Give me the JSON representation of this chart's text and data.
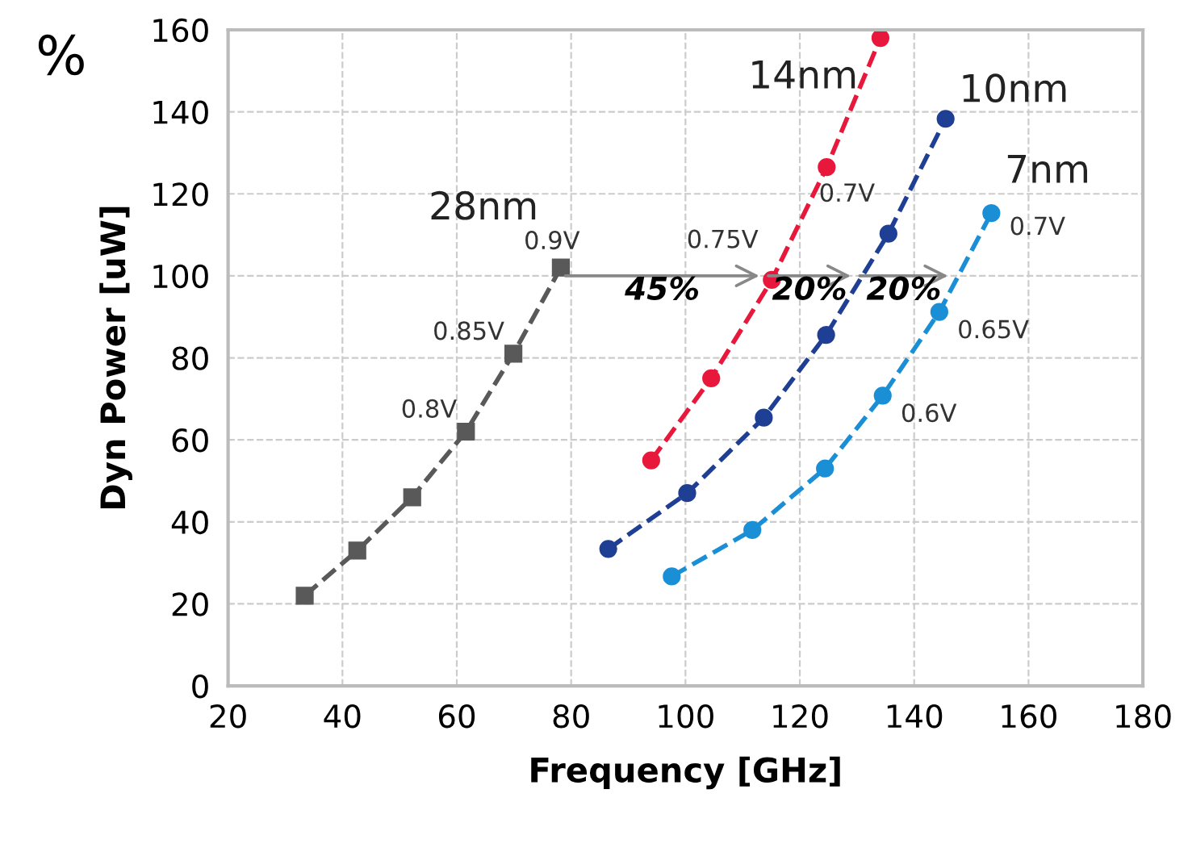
{
  "chart_data": {
    "type": "line",
    "xlabel": "Frequency [GHz]",
    "ylabel": "Dyn Power [uW]",
    "xlim": [
      20,
      180
    ],
    "xticks": [
      20,
      40,
      60,
      80,
      100,
      120,
      140,
      160,
      180
    ],
    "ylim": [
      0,
      160
    ],
    "yticks": [
      0,
      20,
      40,
      60,
      80,
      100,
      120,
      140,
      160
    ],
    "grid": true,
    "line_style": "dashed",
    "legend": false,
    "series": [
      {
        "name": "28nm",
        "color": "#595959",
        "marker": "square",
        "x": [
          33.4,
          42.6,
          52.2,
          61.6,
          69.9,
          78.2
        ],
        "values": [
          22,
          33,
          46,
          62,
          81,
          102
        ]
      },
      {
        "name": "14nm",
        "color": "#e8183c",
        "marker": "circle",
        "x": [
          94,
          104.5,
          115.1,
          124.7,
          134.1
        ],
        "values": [
          55,
          75,
          99,
          126.5,
          158
        ]
      },
      {
        "name": "10nm",
        "color": "#1f3f94",
        "marker": "circle",
        "x": [
          86.5,
          100.3,
          113.7,
          124.6,
          135.5,
          145.5
        ],
        "values": [
          33.4,
          47,
          65.4,
          85.6,
          110.3,
          138.3
        ]
      },
      {
        "name": "7nm",
        "color": "#1a8fd6",
        "marker": "circle",
        "x": [
          97.6,
          111.7,
          124.4,
          134.5,
          144.4,
          153.5
        ],
        "values": [
          26.7,
          38,
          53,
          70.8,
          91.2,
          115.3
        ]
      }
    ],
    "annotations": [
      {
        "text": "0.8V",
        "x": 61.6,
        "y": 62
      },
      {
        "text": "0.85V",
        "x": 69.9,
        "y": 81
      },
      {
        "text": "0.9V",
        "x": 78.2,
        "y": 102
      },
      {
        "text": "0.75V",
        "x": 115.1,
        "y": 99
      },
      {
        "text": "0.7V",
        "x": 135.5,
        "y": 110.3
      },
      {
        "text": "0.7V",
        "x": 153.5,
        "y": 115.3
      },
      {
        "text": "0.65V",
        "x": 144.4,
        "y": 91.2
      },
      {
        "text": "0.6V",
        "x": 134.5,
        "y": 70.8
      },
      {
        "text": "45%",
        "x": 113.7,
        "y": 100
      },
      {
        "text": "20%",
        "x": 129.7,
        "y": 100
      },
      {
        "text": "20%",
        "x": 146.7,
        "y": 100
      },
      "%"
    ]
  }
}
